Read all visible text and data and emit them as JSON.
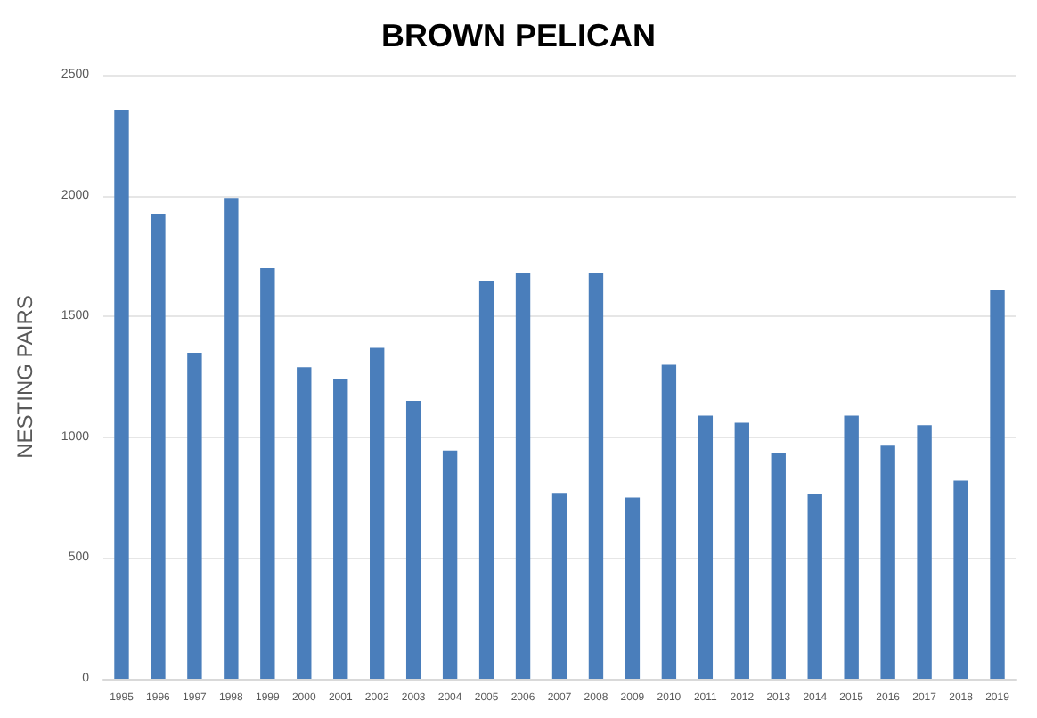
{
  "chart_data": {
    "type": "bar",
    "title": "BROWN PELICAN",
    "ylabel": "NESTING PAIRS",
    "categories": [
      "1995",
      "1996",
      "1997",
      "1998",
      "1999",
      "2000",
      "2001",
      "2002",
      "2003",
      "2004",
      "2005",
      "2006",
      "2007",
      "2008",
      "2009",
      "2010",
      "2011",
      "2012",
      "2013",
      "2014",
      "2015",
      "2016",
      "2017",
      "2018",
      "2019"
    ],
    "values": [
      2355,
      1925,
      1350,
      1990,
      1700,
      1290,
      1240,
      1370,
      1150,
      945,
      1645,
      1680,
      770,
      1680,
      750,
      1300,
      1090,
      1060,
      935,
      765,
      1090,
      965,
      1050,
      820,
      1610
    ],
    "color": "#4a7ebb",
    "ylim": [
      0,
      2500
    ],
    "yticks": [
      0,
      500,
      1000,
      1500,
      2000,
      2500
    ],
    "grid": "y"
  }
}
